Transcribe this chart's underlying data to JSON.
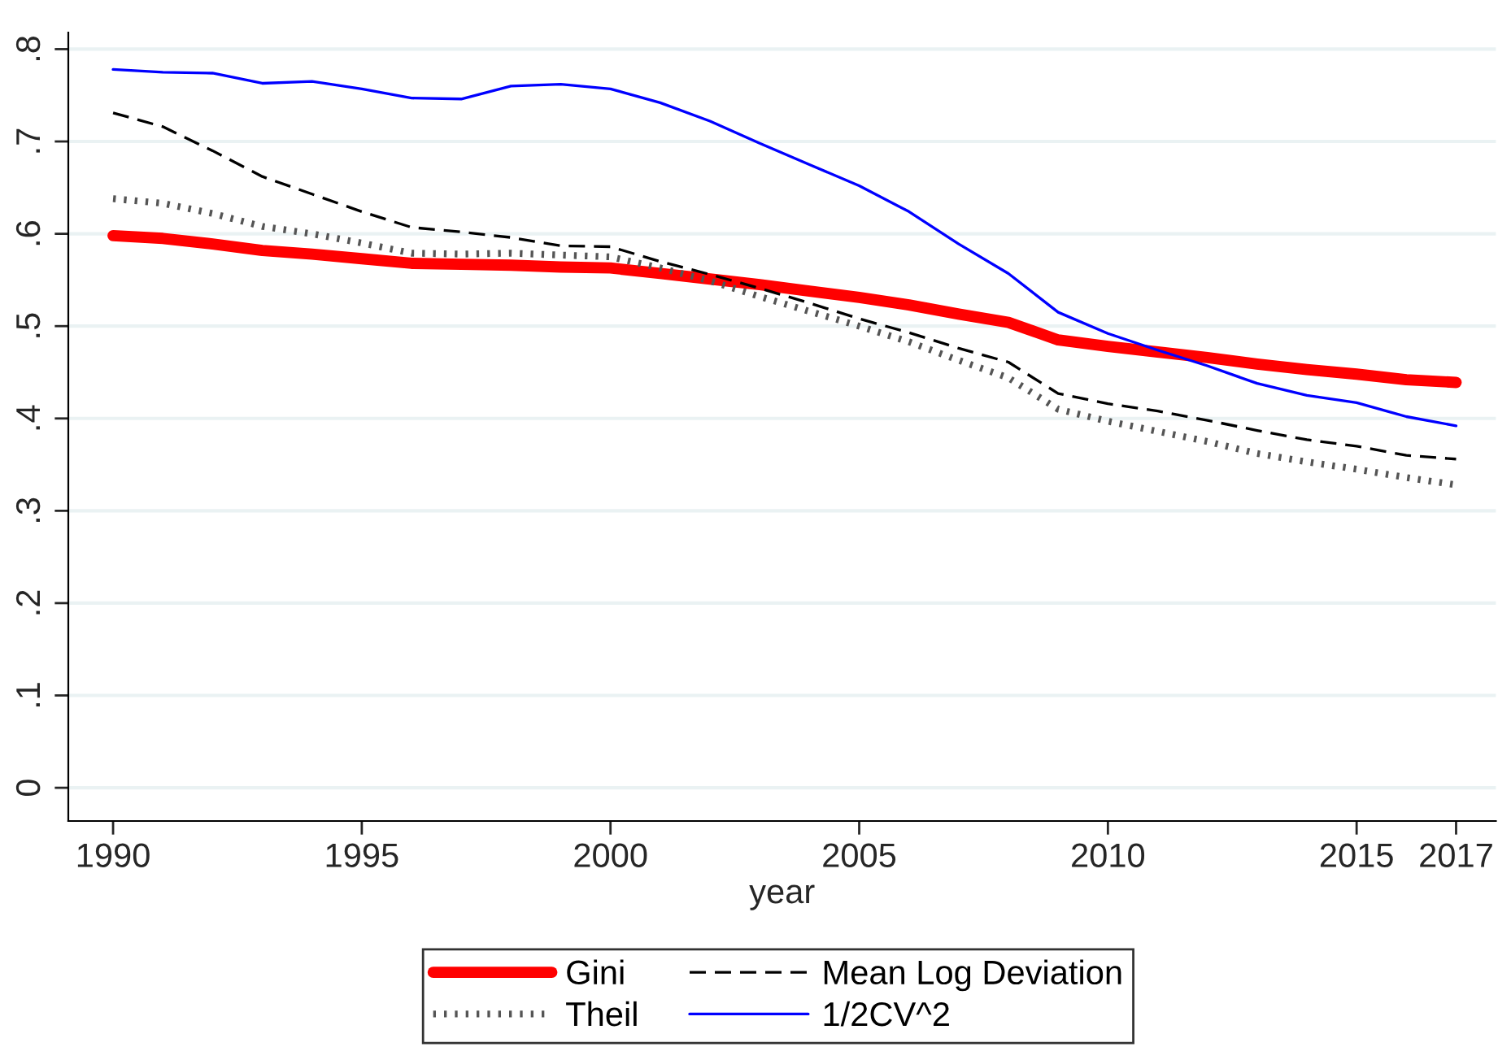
{
  "chart_data": {
    "type": "line",
    "xlabel": "year",
    "x": [
      1990,
      1991,
      1992,
      1993,
      1994,
      1995,
      1996,
      1997,
      1998,
      1999,
      2000,
      2001,
      2002,
      2003,
      2004,
      2005,
      2006,
      2007,
      2008,
      2009,
      2010,
      2011,
      2012,
      2013,
      2014,
      2015,
      2016,
      2017
    ],
    "series": [
      {
        "name": "Gini",
        "color": "#ff0000",
        "line_style": "solid",
        "values": [
          0.598,
          0.595,
          0.589,
          0.582,
          0.578,
          0.573,
          0.568,
          0.567,
          0.566,
          0.564,
          0.563,
          0.557,
          0.551,
          0.545,
          0.538,
          0.531,
          0.523,
          0.513,
          0.504,
          0.485,
          0.478,
          0.472,
          0.466,
          0.459,
          0.453,
          0.448,
          0.442,
          0.439
        ]
      },
      {
        "name": "Mean Log Deviation",
        "color": "#000000",
        "line_style": "dashed",
        "values": [
          0.731,
          0.716,
          0.69,
          0.662,
          0.643,
          0.624,
          0.607,
          0.602,
          0.596,
          0.587,
          0.586,
          0.57,
          0.556,
          0.541,
          0.525,
          0.508,
          0.493,
          0.476,
          0.461,
          0.427,
          0.416,
          0.408,
          0.398,
          0.387,
          0.377,
          0.37,
          0.36,
          0.356
        ]
      },
      {
        "name": "Theil",
        "color": "#555555",
        "line_style": "dotted",
        "values": [
          0.638,
          0.633,
          0.622,
          0.608,
          0.6,
          0.59,
          0.579,
          0.578,
          0.579,
          0.577,
          0.575,
          0.563,
          0.549,
          0.532,
          0.516,
          0.5,
          0.483,
          0.463,
          0.444,
          0.41,
          0.397,
          0.386,
          0.375,
          0.362,
          0.353,
          0.345,
          0.336,
          0.328
        ]
      },
      {
        "name": "1/2CV^2",
        "color": "#0000ff",
        "line_style": "solid",
        "values": [
          0.778,
          0.775,
          0.774,
          0.763,
          0.765,
          0.757,
          0.747,
          0.746,
          0.76,
          0.762,
          0.757,
          0.742,
          0.722,
          0.698,
          0.675,
          0.652,
          0.624,
          0.589,
          0.557,
          0.515,
          0.492,
          0.474,
          0.457,
          0.438,
          0.425,
          0.417,
          0.402,
          0.392
        ]
      }
    ],
    "xlim": [
      1989.1,
      2017.8
    ],
    "ylim": [
      -0.036,
      0.818
    ],
    "xticks": [
      1990,
      1995,
      2000,
      2005,
      2010,
      2015,
      2017
    ],
    "yticks": [
      {
        "value": 0,
        "label": "0"
      },
      {
        "value": 0.1,
        "label": ".1"
      },
      {
        "value": 0.2,
        "label": ".2"
      },
      {
        "value": 0.3,
        "label": ".3"
      },
      {
        "value": 0.4,
        "label": ".4"
      },
      {
        "value": 0.5,
        "label": ".5"
      },
      {
        "value": 0.6,
        "label": ".6"
      },
      {
        "value": 0.7,
        "label": ".7"
      },
      {
        "value": 0.8,
        "label": ".8"
      }
    ],
    "grid": "y",
    "legend": "bottom"
  }
}
